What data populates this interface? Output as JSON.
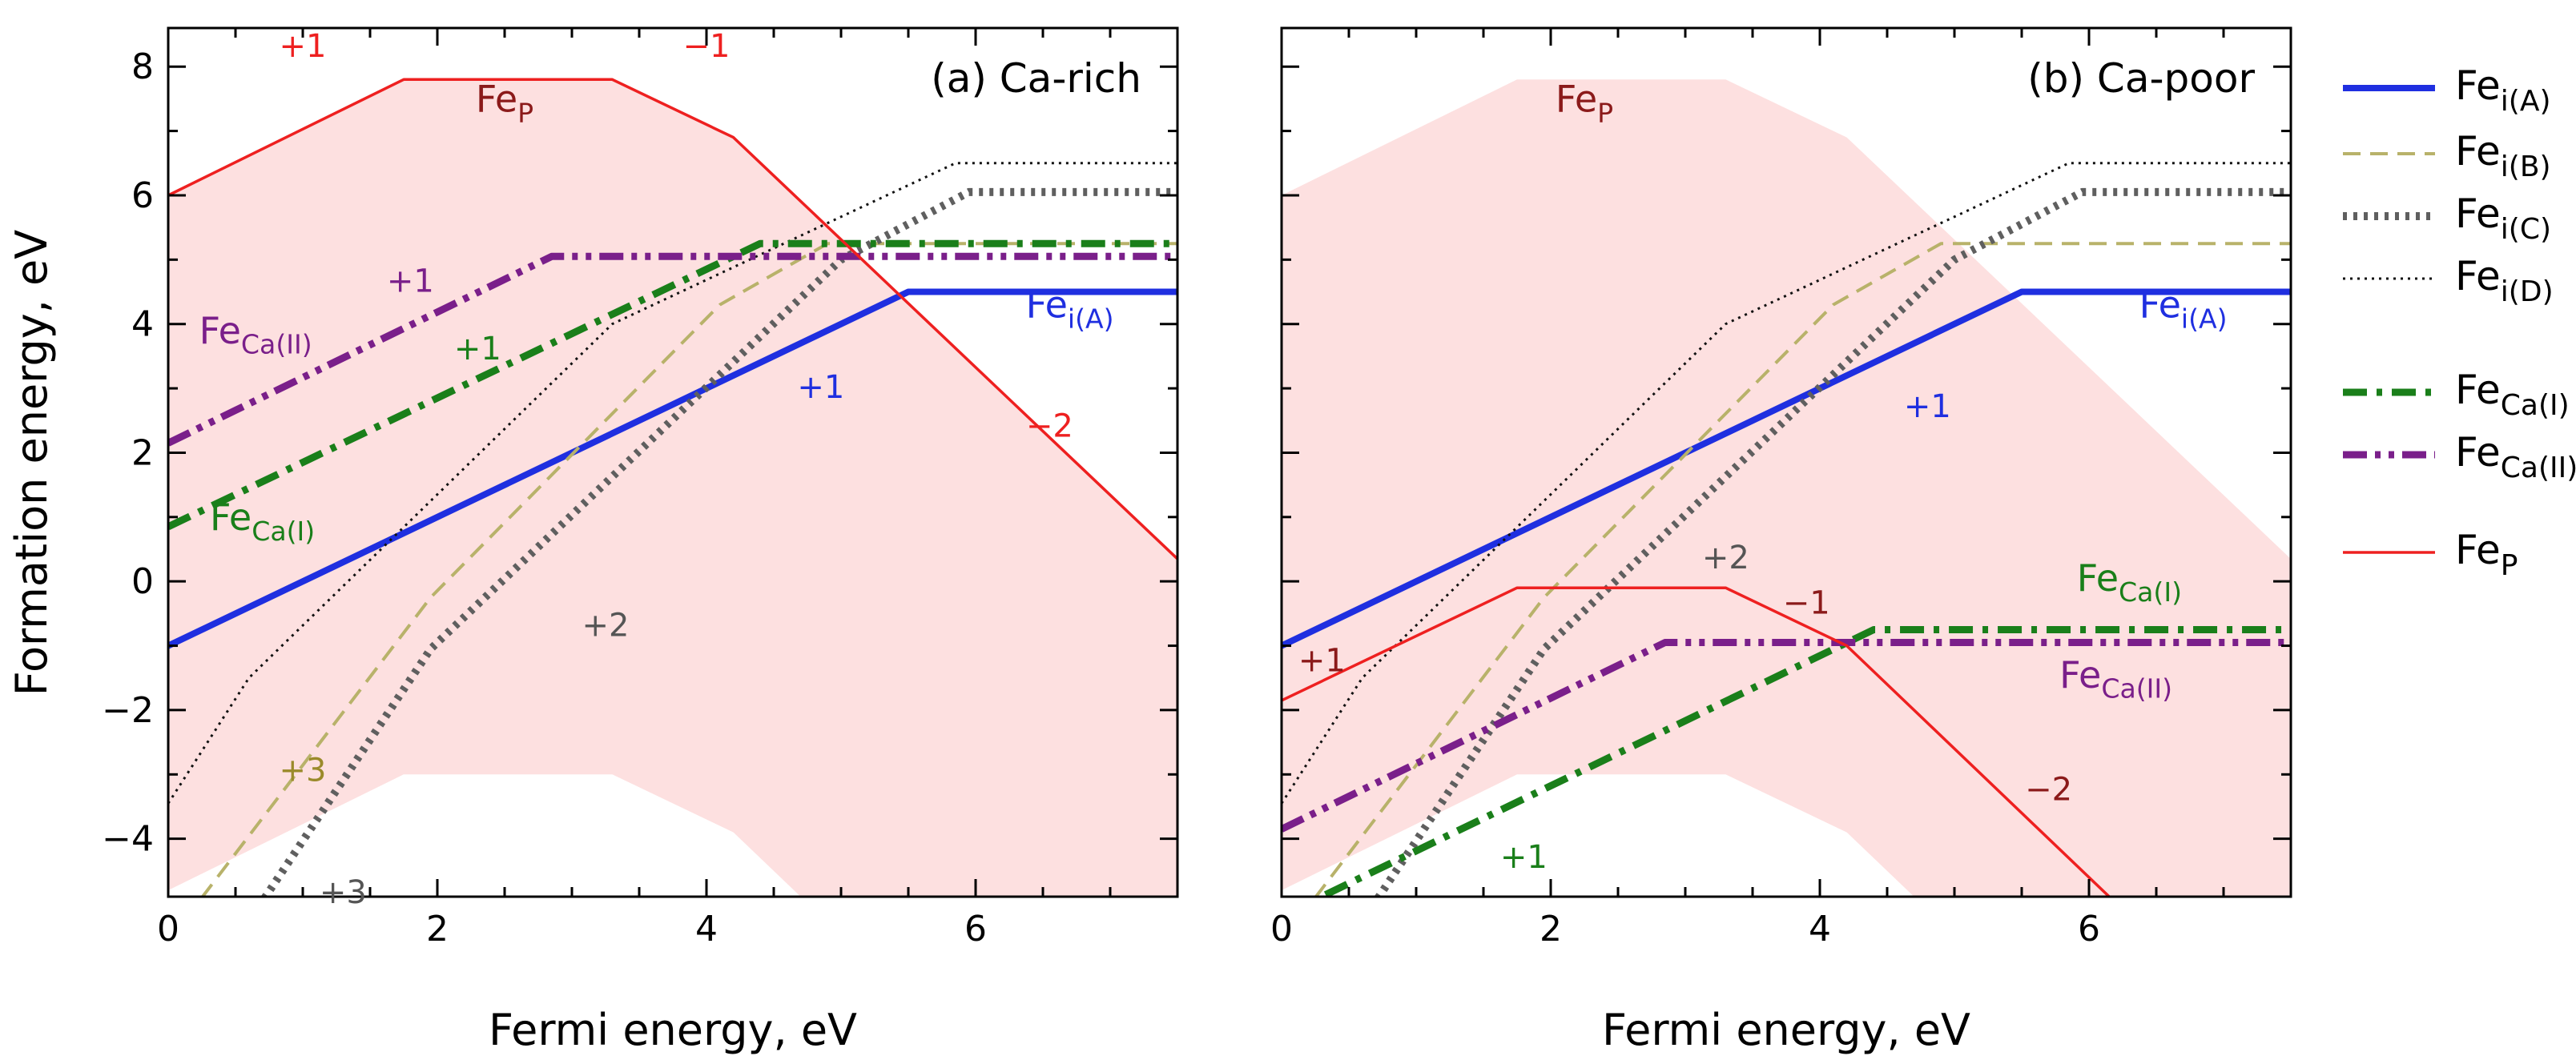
{
  "colors": {
    "fe_i_a": "#1f2fe0",
    "fe_i_b": "#b8b26a",
    "fe_i_c": "#5f5f5f",
    "fe_i_d": "#111111",
    "fe_ca_i": "#1a7f1a",
    "fe_ca_ii": "#7a1f8a",
    "fe_p": "#ee2020",
    "fe_p_dark": "#8b1a1a",
    "region": "#fde0e0",
    "label_b3": "#9a8a2a",
    "label_c": "#555555"
  },
  "legend": [
    {
      "key": "fe_i_a",
      "base": "Fe",
      "sub": "i(A)",
      "style": "solid-thick"
    },
    {
      "key": "fe_i_b",
      "base": "Fe",
      "sub": "i(B)",
      "style": "dash"
    },
    {
      "key": "fe_i_c",
      "base": "Fe",
      "sub": "i(C)",
      "style": "dot-thick"
    },
    {
      "key": "fe_i_d",
      "base": "Fe",
      "sub": "i(D)",
      "style": "dot-thin"
    },
    {
      "key": "fe_ca_i",
      "base": "Fe",
      "sub": "Ca(I)",
      "style": "dashdot"
    },
    {
      "key": "fe_ca_ii",
      "base": "Fe",
      "sub": "Ca(II)",
      "style": "dashdotdot"
    },
    {
      "key": "fe_p",
      "base": "Fe",
      "sub": "P",
      "style": "solid-thin"
    }
  ],
  "chart_data": [
    {
      "type": "line",
      "title": "(a) Ca-rich",
      "xlabel": "Fermi energy, eV",
      "ylabel": "Formation energy, eV",
      "xlim": [
        0,
        7.5
      ],
      "ylim": [
        -4.9,
        8.6
      ],
      "xticks": [
        "0",
        "2",
        "4",
        "6"
      ],
      "xtick_values": [
        0,
        2,
        4,
        6
      ],
      "yticks": [
        "−4",
        "−2",
        "0",
        "2",
        "4",
        "6",
        "8"
      ],
      "ytick_values": [
        -4,
        -2,
        0,
        2,
        4,
        6,
        8
      ],
      "region": {
        "upper": [
          [
            0,
            6.0
          ],
          [
            1.75,
            7.8
          ],
          [
            3.3,
            7.8
          ],
          [
            4.2,
            6.9
          ],
          [
            7.5,
            0.35
          ]
        ],
        "lower": [
          [
            0,
            -4.9
          ],
          [
            0,
            -4.8
          ],
          [
            1.75,
            -3.0
          ],
          [
            3.3,
            -3.0
          ],
          [
            4.2,
            -3.9
          ],
          [
            4.7,
            -4.9
          ]
        ]
      },
      "series": [
        {
          "name": "Fe_i(A)",
          "key": "fe_i_a",
          "x": [
            0,
            5.5,
            7.5
          ],
          "y": [
            -1.0,
            4.5,
            4.5
          ]
        },
        {
          "name": "Fe_i(B)",
          "key": "fe_i_b",
          "x": [
            0,
            1.95,
            4.1,
            4.9,
            7.5
          ],
          "y": [
            -5.6,
            -0.25,
            4.3,
            5.25,
            5.25
          ]
        },
        {
          "name": "Fe_i(C)",
          "key": "fe_i_c",
          "x": [
            0.5,
            1.95,
            5.0,
            5.95,
            7.5
          ],
          "y": [
            -5.6,
            -1.05,
            5.0,
            6.05,
            6.05
          ]
        },
        {
          "name": "Fe_i(D)",
          "key": "fe_i_d",
          "x": [
            0,
            0.6,
            3.3,
            5.85,
            7.5
          ],
          "y": [
            -3.45,
            -1.5,
            4.0,
            6.5,
            6.5
          ]
        },
        {
          "name": "Fe_Ca(I)",
          "key": "fe_ca_i",
          "x": [
            0,
            4.4,
            7.5
          ],
          "y": [
            0.85,
            5.25,
            5.25
          ]
        },
        {
          "name": "Fe_Ca(II)",
          "key": "fe_ca_ii",
          "x": [
            0,
            2.85,
            7.5
          ],
          "y": [
            2.15,
            5.05,
            5.05
          ]
        },
        {
          "name": "Fe_P",
          "key": "fe_p",
          "x": [
            0,
            1.75,
            3.3,
            4.2,
            7.5
          ],
          "y": [
            6.0,
            7.8,
            7.8,
            6.9,
            0.35
          ]
        }
      ],
      "annotations": [
        {
          "text": "+1",
          "x": 1.0,
          "y": 8.15,
          "key": "fe_p"
        },
        {
          "text": "−1",
          "x": 4.0,
          "y": 8.15,
          "key": "fe_p"
        },
        {
          "text": "−2",
          "x": 6.55,
          "y": 2.25,
          "key": "fe_p"
        },
        {
          "text": "Fe",
          "sub": "P",
          "x": 2.5,
          "y": 7.3,
          "key": "fe_p_dark"
        },
        {
          "text": "+1",
          "x": 1.8,
          "y": 4.5,
          "key": "fe_ca_ii"
        },
        {
          "text": "Fe",
          "sub": "Ca(II)",
          "x": 0.65,
          "y": 3.7,
          "key": "fe_ca_ii"
        },
        {
          "text": "+1",
          "x": 2.3,
          "y": 3.45,
          "key": "fe_ca_i"
        },
        {
          "text": "Fe",
          "sub": "Ca(I)",
          "x": 0.7,
          "y": 0.8,
          "key": "fe_ca_i"
        },
        {
          "text": "Fe",
          "sub": "i(A)",
          "x": 6.7,
          "y": 4.1,
          "key": "fe_i_a"
        },
        {
          "text": "+1",
          "x": 4.85,
          "y": 2.85,
          "key": "fe_i_a"
        },
        {
          "text": "+2",
          "x": 3.25,
          "y": -0.85,
          "key": "label_c"
        },
        {
          "text": "+3",
          "x": 1.0,
          "y": -3.1,
          "key": "label_b3"
        },
        {
          "text": "+3",
          "x": 1.3,
          "y": -5.0,
          "key": "label_c"
        }
      ]
    },
    {
      "type": "line",
      "title": "(b) Ca-poor",
      "xlabel": "Fermi energy, eV",
      "xlim": [
        0,
        7.5
      ],
      "ylim": [
        -4.9,
        8.6
      ],
      "xticks": [
        "0",
        "2",
        "4",
        "6"
      ],
      "xtick_values": [
        0,
        2,
        4,
        6
      ],
      "yticks": [],
      "ytick_values": [
        -4,
        -2,
        0,
        2,
        4,
        6,
        8
      ],
      "region": {
        "upper": [
          [
            0,
            6.0
          ],
          [
            1.75,
            7.8
          ],
          [
            3.3,
            7.8
          ],
          [
            4.2,
            6.9
          ],
          [
            7.5,
            0.35
          ]
        ],
        "lower": [
          [
            0,
            -4.9
          ],
          [
            0,
            -4.8
          ],
          [
            1.75,
            -3.0
          ],
          [
            3.3,
            -3.0
          ],
          [
            4.2,
            -3.9
          ],
          [
            4.7,
            -4.9
          ]
        ]
      },
      "series": [
        {
          "name": "Fe_i(A)",
          "key": "fe_i_a",
          "x": [
            0,
            5.5,
            7.5
          ],
          "y": [
            -1.0,
            4.5,
            4.5
          ]
        },
        {
          "name": "Fe_i(B)",
          "key": "fe_i_b",
          "x": [
            0,
            1.95,
            4.1,
            4.9,
            7.5
          ],
          "y": [
            -5.6,
            -0.25,
            4.3,
            5.25,
            5.25
          ]
        },
        {
          "name": "Fe_i(C)",
          "key": "fe_i_c",
          "x": [
            0.5,
            1.95,
            5.0,
            5.95,
            7.5
          ],
          "y": [
            -5.6,
            -1.05,
            5.0,
            6.05,
            6.05
          ]
        },
        {
          "name": "Fe_i(D)",
          "key": "fe_i_d",
          "x": [
            0,
            0.6,
            3.3,
            5.85,
            7.5
          ],
          "y": [
            -3.45,
            -1.5,
            4.0,
            6.5,
            6.5
          ]
        },
        {
          "name": "Fe_Ca(I)",
          "key": "fe_ca_i",
          "x": [
            0,
            4.4,
            7.5
          ],
          "y": [
            -5.2,
            -0.75,
            -0.75
          ]
        },
        {
          "name": "Fe_Ca(II)",
          "key": "fe_ca_ii",
          "x": [
            0,
            2.85,
            7.5
          ],
          "y": [
            -3.85,
            -0.95,
            -0.95
          ]
        },
        {
          "name": "Fe_P",
          "key": "fe_p",
          "x": [
            0,
            1.75,
            3.3,
            4.2,
            6.2
          ],
          "y": [
            -1.85,
            -0.1,
            -0.1,
            -1.0,
            -5.0
          ]
        }
      ],
      "annotations": [
        {
          "text": "Fe",
          "sub": "P",
          "x": 2.25,
          "y": 7.3,
          "key": "fe_p_dark"
        },
        {
          "text": "Fe",
          "sub": "i(A)",
          "x": 6.7,
          "y": 4.1,
          "key": "fe_i_a"
        },
        {
          "text": "+1",
          "x": 4.8,
          "y": 2.55,
          "key": "fe_i_a"
        },
        {
          "text": "+2",
          "x": 3.3,
          "y": 0.2,
          "key": "label_c"
        },
        {
          "text": "Fe",
          "sub": "Ca(I)",
          "x": 6.3,
          "y": -0.15,
          "key": "fe_ca_i"
        },
        {
          "text": "Fe",
          "sub": "Ca(II)",
          "x": 6.2,
          "y": -1.65,
          "key": "fe_ca_ii"
        },
        {
          "text": "−1",
          "x": 3.9,
          "y": -0.5,
          "key": "fe_p_dark"
        },
        {
          "text": "+1",
          "x": 0.3,
          "y": -1.4,
          "key": "fe_p_dark"
        },
        {
          "text": "−2",
          "x": 5.7,
          "y": -3.4,
          "key": "fe_p_dark"
        },
        {
          "text": "+1",
          "x": 1.8,
          "y": -4.45,
          "key": "fe_ca_i"
        }
      ]
    }
  ]
}
